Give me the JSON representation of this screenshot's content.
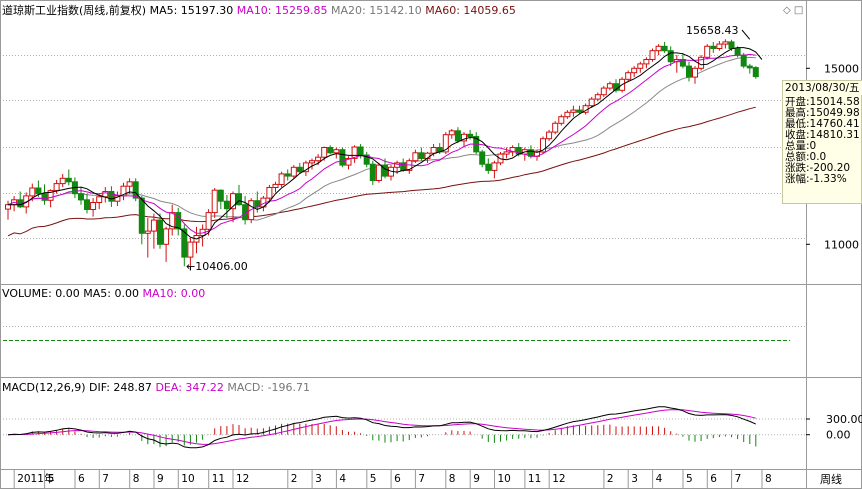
{
  "price_legend": {
    "title": "道琼斯工业指数(周线,前复权)",
    "ma5": "MA5: 15197.30",
    "ma10": "MA10: 15259.85",
    "ma20": "MA20: 15142.10",
    "ma60": "MA60: 14059.65"
  },
  "volume_legend": {
    "volume": "VOLUME: 0.00",
    "ma5": "MA5: 0.00",
    "ma10": "MA10: 0.00"
  },
  "macd_legend": {
    "title": "MACD(12,26,9)",
    "dif": "DIF: 248.87",
    "dea": "DEA: 347.22",
    "macd": "MACD: -196.71"
  },
  "colors": {
    "up": "#d01010",
    "down": "#118811",
    "ma5": "#000000",
    "ma10": "#cc00cc",
    "ma20": "#888888",
    "ma60": "#7a1010",
    "grid": "#b0b0b0",
    "volume_line": "#118811"
  },
  "corner_icons": {
    "diamond": "◇",
    "square": "□"
  },
  "info_panel": {
    "date": "2013/08/30/五",
    "open": "开盘:15014.58",
    "high": "最高:15049.98",
    "low": "最低:14760.41",
    "close": "收盘:14810.31",
    "volume": "总量:0",
    "amount": "总额:0.0",
    "change": "涨跌:-200.20",
    "change_pct": "涨幅:-1.33%"
  },
  "annotations": {
    "high": "15658.43",
    "low": "10406.00"
  },
  "period_label": "周线",
  "chart_data": {
    "type": "candlestick",
    "price_axis": {
      "ticks": [
        11000,
        15000
      ],
      "ylim": [
        10120,
        16120
      ]
    },
    "macd_axis": {
      "ticks": [
        300.0,
        0.0
      ],
      "tick_labels": [
        "300.00",
        "0.00"
      ],
      "ylim": [
        -620,
        760
      ]
    },
    "x_labels": [
      "2011年",
      "5",
      "6",
      "7",
      "8",
      "9",
      "10",
      "11",
      "12",
      "2",
      "3",
      "4",
      "5",
      "6",
      "7",
      "8",
      "9",
      "10",
      "11",
      "12",
      "2",
      "3",
      "4",
      "5",
      "6",
      "7",
      "8"
    ],
    "x_label_weeks": [
      2,
      7,
      12,
      16,
      21,
      25,
      29,
      34,
      38,
      47,
      51,
      55,
      60,
      64,
      68,
      73,
      77,
      81,
      86,
      90,
      99,
      103,
      107,
      112,
      116,
      120,
      125
    ],
    "ohlc": [
      [
        11800,
        11990,
        11560,
        11900
      ],
      [
        11900,
        12100,
        11750,
        12010
      ],
      [
        12010,
        12200,
        11820,
        11850
      ],
      [
        11850,
        12180,
        11700,
        12100
      ],
      [
        12100,
        12380,
        11980,
        12280
      ],
      [
        12280,
        12450,
        12080,
        12150
      ],
      [
        12150,
        12360,
        11900,
        12000
      ],
      [
        12000,
        12250,
        11840,
        12220
      ],
      [
        12220,
        12460,
        12150,
        12380
      ],
      [
        12380,
        12600,
        12300,
        12500
      ],
      [
        12500,
        12700,
        12340,
        12420
      ],
      [
        12420,
        12520,
        12050,
        12150
      ],
      [
        12150,
        12300,
        11900,
        12010
      ],
      [
        12010,
        12150,
        11700,
        11790
      ],
      [
        11790,
        12050,
        11630,
        11950
      ],
      [
        11950,
        12150,
        11800,
        12080
      ],
      [
        12080,
        12300,
        11950,
        12200
      ],
      [
        12200,
        12320,
        11850,
        11980
      ],
      [
        11980,
        12200,
        11870,
        12100
      ],
      [
        12100,
        12400,
        12000,
        12320
      ],
      [
        12320,
        12500,
        12150,
        12420
      ],
      [
        12420,
        12500,
        11980,
        12050
      ],
      [
        12050,
        12100,
        11000,
        11250
      ],
      [
        11250,
        11600,
        10700,
        11300
      ],
      [
        11300,
        11700,
        10900,
        11550
      ],
      [
        11550,
        11700,
        10900,
        11000
      ],
      [
        11000,
        11400,
        10600,
        11350
      ],
      [
        11350,
        11900,
        11200,
        11720
      ],
      [
        11720,
        11830,
        11200,
        11350
      ],
      [
        11350,
        11450,
        10500,
        10710
      ],
      [
        10710,
        11150,
        10406,
        11050
      ],
      [
        11050,
        11400,
        10800,
        11200
      ],
      [
        11200,
        11450,
        10950,
        11340
      ],
      [
        11340,
        11800,
        11200,
        11720
      ],
      [
        11720,
        12280,
        11600,
        12230
      ],
      [
        12230,
        12250,
        11800,
        11980
      ],
      [
        11980,
        12120,
        11600,
        11810
      ],
      [
        11810,
        12200,
        11500,
        12150
      ],
      [
        12150,
        12350,
        11880,
        11900
      ],
      [
        11900,
        12100,
        11450,
        11560
      ],
      [
        11560,
        12050,
        11480,
        11990
      ],
      [
        11990,
        12200,
        11720,
        11850
      ],
      [
        11850,
        12100,
        11750,
        12050
      ],
      [
        12050,
        12350,
        11950,
        12290
      ],
      [
        12290,
        12420,
        12180,
        12360
      ],
      [
        12360,
        12650,
        12300,
        12600
      ],
      [
        12600,
        12700,
        12450,
        12550
      ],
      [
        12550,
        12800,
        12500,
        12750
      ],
      [
        12750,
        12850,
        12600,
        12650
      ],
      [
        12650,
        12900,
        12550,
        12850
      ],
      [
        12850,
        12950,
        12700,
        12900
      ],
      [
        12900,
        13050,
        12800,
        12980
      ],
      [
        12980,
        13220,
        12900,
        13200
      ],
      [
        13200,
        13250,
        13050,
        13080
      ],
      [
        13080,
        13200,
        12950,
        13150
      ],
      [
        13150,
        13200,
        12750,
        12800
      ],
      [
        12800,
        13000,
        12700,
        12950
      ],
      [
        12950,
        13250,
        12850,
        13210
      ],
      [
        13210,
        13280,
        12950,
        13030
      ],
      [
        13030,
        13100,
        12750,
        12820
      ],
      [
        12820,
        12900,
        12350,
        12450
      ],
      [
        12450,
        12850,
        12400,
        12800
      ],
      [
        12800,
        12950,
        12500,
        12550
      ],
      [
        12550,
        12800,
        12450,
        12750
      ],
      [
        12750,
        12900,
        12600,
        12850
      ],
      [
        12850,
        12950,
        12650,
        12680
      ],
      [
        12680,
        12950,
        12600,
        12900
      ],
      [
        12900,
        13150,
        12850,
        13080
      ],
      [
        13080,
        13200,
        12900,
        12950
      ],
      [
        12950,
        13100,
        12850,
        13070
      ],
      [
        13070,
        13280,
        13000,
        13200
      ],
      [
        13200,
        13300,
        13050,
        13100
      ],
      [
        13100,
        13550,
        13050,
        13490
      ],
      [
        13490,
        13620,
        13400,
        13580
      ],
      [
        13580,
        13660,
        13300,
        13350
      ],
      [
        13350,
        13550,
        13200,
        13500
      ],
      [
        13500,
        13600,
        13380,
        13450
      ],
      [
        13450,
        13550,
        13050,
        13100
      ],
      [
        13100,
        13150,
        12750,
        12820
      ],
      [
        12820,
        12950,
        12600,
        12680
      ],
      [
        12680,
        12900,
        12500,
        12850
      ],
      [
        12850,
        13100,
        12800,
        13050
      ],
      [
        13050,
        13200,
        12950,
        13100
      ],
      [
        13100,
        13250,
        13000,
        13200
      ],
      [
        13200,
        13300,
        13000,
        13050
      ],
      [
        13050,
        13200,
        12900,
        13150
      ],
      [
        13150,
        13250,
        12950,
        13000
      ],
      [
        13000,
        13150,
        12900,
        13100
      ],
      [
        13100,
        13450,
        13050,
        13400
      ],
      [
        13400,
        13600,
        13350,
        13550
      ],
      [
        13550,
        13800,
        13500,
        13750
      ],
      [
        13750,
        13950,
        13700,
        13900
      ],
      [
        13900,
        14050,
        13850,
        14000
      ],
      [
        14000,
        14150,
        13900,
        14050
      ],
      [
        14050,
        14150,
        13950,
        14000
      ],
      [
        14000,
        14200,
        13950,
        14150
      ],
      [
        14150,
        14350,
        14100,
        14300
      ],
      [
        14300,
        14450,
        14250,
        14400
      ],
      [
        14400,
        14600,
        14350,
        14550
      ],
      [
        14550,
        14700,
        14500,
        14650
      ],
      [
        14650,
        14750,
        14450,
        14500
      ],
      [
        14500,
        14800,
        14450,
        14750
      ],
      [
        14750,
        14950,
        14700,
        14900
      ],
      [
        14900,
        15050,
        14800,
        15000
      ],
      [
        15000,
        15150,
        14900,
        15100
      ],
      [
        15100,
        15250,
        15000,
        15200
      ],
      [
        15200,
        15450,
        15150,
        15400
      ],
      [
        15400,
        15550,
        15300,
        15500
      ],
      [
        15500,
        15600,
        15350,
        15400
      ],
      [
        15400,
        15500,
        15050,
        15150
      ],
      [
        15150,
        15300,
        14900,
        15200
      ],
      [
        15200,
        15350,
        15000,
        15050
      ],
      [
        15050,
        15150,
        14700,
        14800
      ],
      [
        14800,
        15050,
        14650,
        15000
      ],
      [
        15000,
        15300,
        14950,
        15250
      ],
      [
        15250,
        15550,
        15200,
        15500
      ],
      [
        15500,
        15600,
        15350,
        15450
      ],
      [
        15450,
        15620,
        15400,
        15550
      ],
      [
        15550,
        15658,
        15450,
        15600
      ],
      [
        15600,
        15650,
        15400,
        15450
      ],
      [
        15450,
        15500,
        15250,
        15300
      ],
      [
        15300,
        15350,
        15000,
        15050
      ],
      [
        15050,
        15100,
        14880,
        15010
      ],
      [
        15014.58,
        15049.98,
        14760.41,
        14810.31
      ]
    ],
    "ma5": [
      11900,
      11900,
      11900,
      11950,
      12050,
      12130,
      12170,
      12180,
      12210,
      12240,
      12270,
      12290,
      12300,
      12260,
      12180,
      12110,
      12070,
      12030,
      12070,
      12130,
      12190,
      12170,
      12020,
      11870,
      11760,
      11640,
      11470,
      11400,
      11380,
      11280,
      11160,
      11120,
      11180,
      11260,
      11490,
      11600,
      11730,
      11860,
      11990,
      11950,
      11860,
      11790,
      11850,
      11970,
      12150,
      12280,
      12380,
      12490,
      12610,
      12690,
      12780,
      12840,
      12950,
      13020,
      13060,
      13040,
      13020,
      13020,
      13020,
      12990,
      12940,
      12830,
      12710,
      12660,
      12640,
      12680,
      12700,
      12780,
      12860,
      12960,
      13060,
      13100,
      13150,
      13260,
      13330,
      13390,
      13430,
      13410,
      13330,
      13190,
      13040,
      12940,
      12920,
      12960,
      13050,
      13100,
      13120,
      13090,
      13140,
      13250,
      13400,
      13570,
      13720,
      13860,
      13960,
      14040,
      14120,
      14190,
      14300,
      14410,
      14520,
      14630,
      14700,
      14760,
      14840,
      14950,
      15050,
      15150,
      15270,
      15350,
      15350,
      15330,
      15270,
      15160,
      15080,
      15090,
      15170,
      15270,
      15360,
      15440,
      15470,
      15470,
      15440,
      15370,
      15200
    ]
  }
}
